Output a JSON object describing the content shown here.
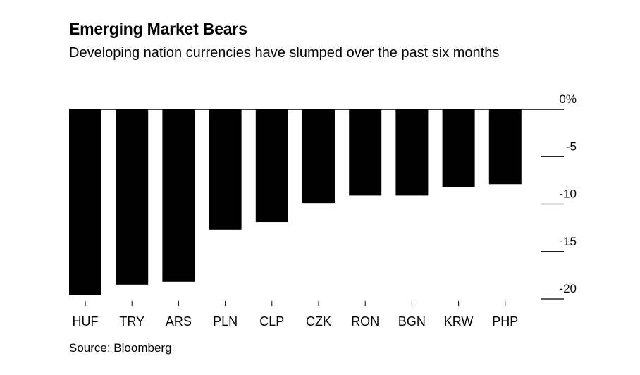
{
  "header": {
    "title": "Emerging Market Bears",
    "subtitle": "Developing nation currencies have slumped over the past six months"
  },
  "footer": {
    "source": "Source: Bloomberg"
  },
  "chart_data": {
    "type": "bar",
    "title": "Emerging Market Bears",
    "subtitle": "Developing nation currencies have slumped over the past six months",
    "xlabel": "",
    "ylabel": "",
    "categories": [
      "HUF",
      "TRY",
      "ARS",
      "PLN",
      "CLP",
      "CZK",
      "RON",
      "BGN",
      "KRW",
      "PHP"
    ],
    "values": [
      -19.6,
      -18.5,
      -18.2,
      -12.7,
      -11.9,
      -9.9,
      -9.1,
      -9.1,
      -8.2,
      -7.9
    ],
    "ylim": [
      -20,
      0
    ],
    "yticks": [
      0,
      -5,
      -10,
      -15,
      -20
    ],
    "ytick_labels": [
      "0%",
      "-5",
      "-10",
      "-15",
      "-20"
    ],
    "axis_position": "right",
    "grid": false,
    "bar_color": "#000000"
  }
}
